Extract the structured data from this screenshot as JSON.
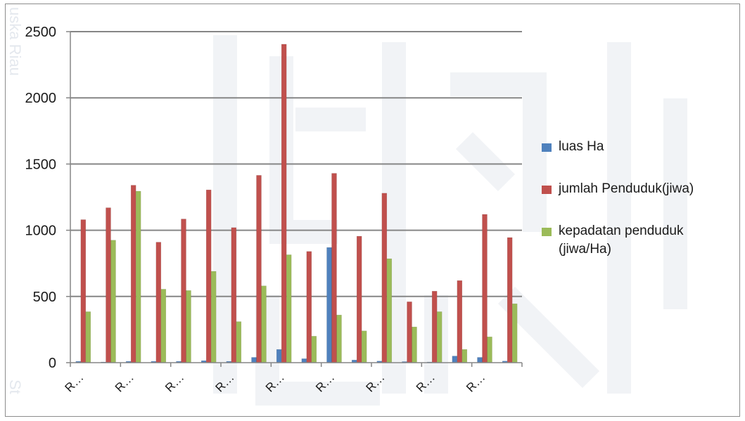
{
  "chart_data": {
    "type": "bar",
    "title": "",
    "xlabel": "",
    "ylabel": "",
    "ylim": [
      0,
      2500
    ],
    "yticks": [
      0,
      500,
      1000,
      1500,
      2000,
      2500
    ],
    "grid": "horizontal",
    "legend_position": "right",
    "categories": [
      "R…",
      "",
      "R…",
      "",
      "R…",
      "",
      "R…",
      "",
      "R…",
      "",
      "R…",
      "",
      "R…",
      "",
      "R…",
      "",
      "R…",
      ""
    ],
    "series": [
      {
        "name": "luas Ha",
        "color": "#4f81bd",
        "values": [
          10,
          5,
          10,
          10,
          10,
          15,
          10,
          40,
          100,
          30,
          870,
          20,
          12,
          8,
          5,
          50,
          40,
          12
        ]
      },
      {
        "name": "jumlah Penduduk(jiwa)",
        "color": "#c0504d",
        "values": [
          1080,
          1170,
          1340,
          910,
          1085,
          1305,
          1020,
          1415,
          2405,
          840,
          1430,
          955,
          1280,
          460,
          540,
          620,
          1120,
          945
        ]
      },
      {
        "name": "kepadatan penduduk (jiwa/Ha)",
        "color": "#9bbb59",
        "values": [
          385,
          925,
          1295,
          555,
          545,
          690,
          310,
          580,
          815,
          200,
          360,
          240,
          785,
          270,
          385,
          100,
          195,
          445
        ]
      }
    ]
  }
}
